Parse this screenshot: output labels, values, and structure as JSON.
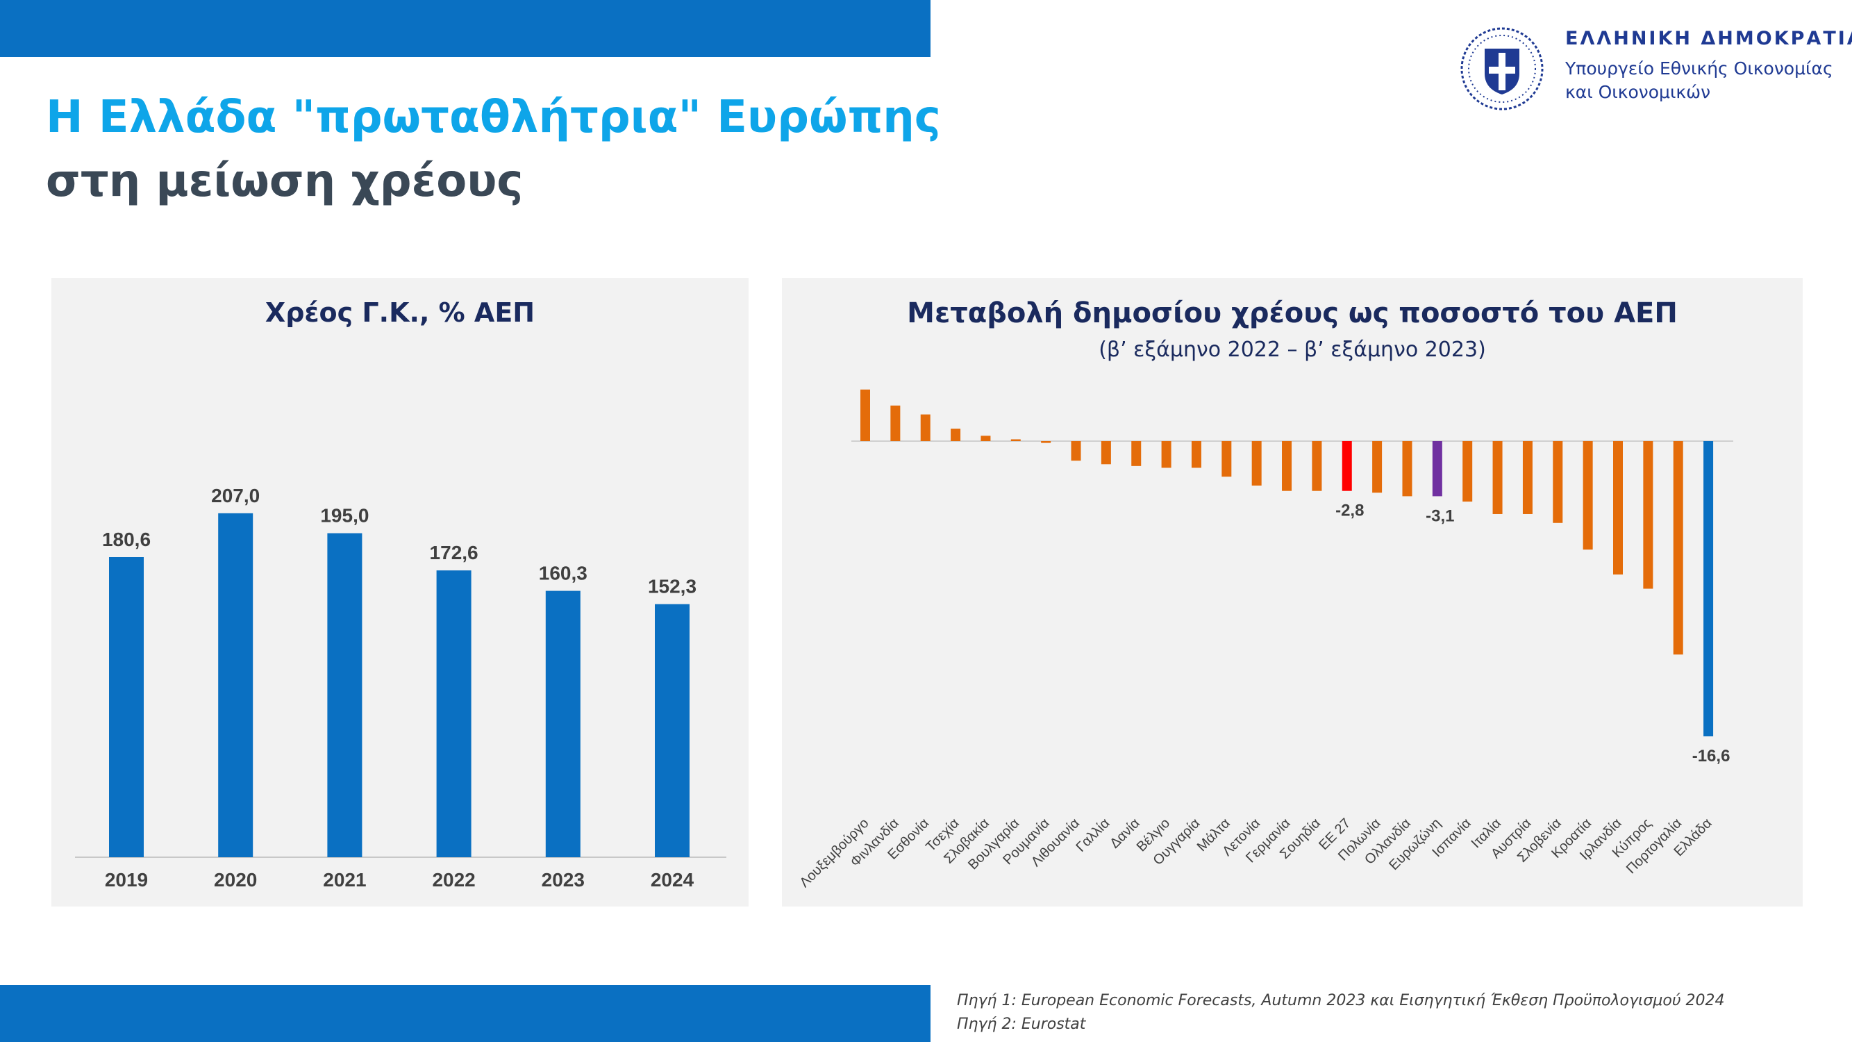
{
  "page": {
    "title_line1": "Η Ελλάδα \"πρωταθλήτρια\" Ευρώπης",
    "title_line2": "στη μείωση χρέους",
    "gov_line1": "ΕΛΛΗΝΙΚΗ ΔΗΜΟΚΡΑΤΙΑ",
    "gov_line2": "Υπουργείο Εθνικής Οικονομίας",
    "gov_line3": "και Οικονομικών",
    "source_1": "Πηγή 1: European Economic Forecasts, Autumn 2023 και Εισηγητική Έκθεση Προϋπολογισμού 2024",
    "source_2": "Πηγή 2: Eurostat"
  },
  "colors": {
    "band": "#0a70c2",
    "bar_blue": "#0a70c2",
    "bar_orange": "#e46c0a",
    "bar_red": "#ff0000",
    "bar_purple": "#7030a0",
    "title_cyan": "#0ea5e9",
    "title_dark": "#3a4856",
    "navy": "#1a2a5e"
  },
  "chart_data": [
    {
      "type": "bar",
      "title": "Χρέος Γ.Κ., % ΑΕΠ",
      "categories": [
        "2019",
        "2020",
        "2021",
        "2022",
        "2023",
        "2024"
      ],
      "values": [
        180.6,
        207.0,
        195.0,
        172.6,
        160.3,
        152.3
      ],
      "value_labels": [
        "180,6",
        "207,0",
        "195,0",
        "172,6",
        "160,3",
        "152,3"
      ],
      "ylim": [
        0,
        250
      ],
      "grid": false,
      "color": "#0a70c2"
    },
    {
      "type": "bar",
      "title": "Μεταβολή δημοσίου χρέους ως ποσοστό του ΑΕΠ",
      "subtitle": "(β’ εξάμηνο 2022 – β’ εξάμηνο 2023)",
      "categories": [
        "Λουξεμβούργο",
        "Φινλανδία",
        "Εσθονία",
        "Τσεχία",
        "Σλοβακία",
        "Βουλγαρία",
        "Ρουμανία",
        "Λιθουανία",
        "Γαλλία",
        "Δανία",
        "Βέλγιο",
        "Ουγγαρία",
        "Μάλτα",
        "Λετονία",
        "Γερμανία",
        "Σουηδία",
        "ΕΕ 27",
        "Πολωνία",
        "Ολλανδία",
        "Ευρωζώνη",
        "Ισπανία",
        "Ιταλία",
        "Αυστρία",
        "Σλοβενία",
        "Κροατία",
        "Ιρλανδία",
        "Κύπρος",
        "Πορτογαλία",
        "Ελλάδα"
      ],
      "values": [
        2.9,
        2.0,
        1.5,
        0.7,
        0.3,
        0.1,
        -0.1,
        -1.1,
        -1.3,
        -1.4,
        -1.5,
        -1.5,
        -2.0,
        -2.5,
        -2.8,
        -2.8,
        -2.8,
        -2.9,
        -3.1,
        -3.1,
        -3.4,
        -4.1,
        -4.1,
        -4.6,
        -6.1,
        -7.5,
        -8.3,
        -12.0,
        -16.6
      ],
      "highlight": {
        "ΕΕ 27": "red",
        "Ευρωζώνη": "purple",
        "Ελλάδα": "blue"
      },
      "data_labels": {
        "ΕΕ 27": "-2,8",
        "Ευρωζώνη": "-3,1",
        "Ελλάδα": "-16,6"
      },
      "ylim": [
        -17,
        3
      ],
      "grid": false
    }
  ]
}
